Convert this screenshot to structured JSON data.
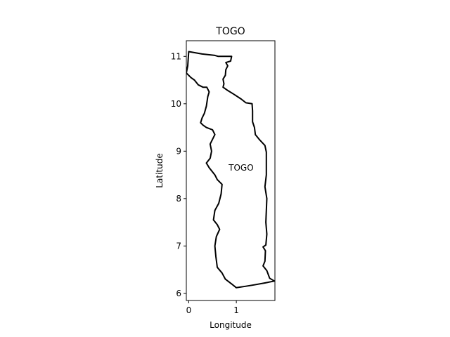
{
  "chart_data": {
    "type": "map",
    "title": "TOGO",
    "xlabel": "Longitude",
    "ylabel": "Latitude",
    "xlim": [
      -0.05,
      1.81
    ],
    "ylim": [
      5.85,
      11.33
    ],
    "xticks": [
      0,
      1
    ],
    "yticks": [
      6,
      7,
      8,
      9,
      10,
      11
    ],
    "xtick_labels": [
      "0",
      "1"
    ],
    "ytick_labels": [
      "6",
      "7",
      "8",
      "9",
      "10",
      "11"
    ],
    "region_label": {
      "text": "TOGO",
      "lon": 1.1,
      "lat": 8.65
    },
    "outline_color": "#000000",
    "boundary": [
      [
        0.0,
        11.1
      ],
      [
        0.28,
        11.05
      ],
      [
        0.55,
        11.02
      ],
      [
        0.62,
        11.0
      ],
      [
        0.9,
        11.0
      ],
      [
        0.88,
        10.9
      ],
      [
        0.78,
        10.87
      ],
      [
        0.82,
        10.8
      ],
      [
        0.78,
        10.72
      ],
      [
        0.77,
        10.6
      ],
      [
        0.72,
        10.52
      ],
      [
        0.74,
        10.42
      ],
      [
        0.72,
        10.35
      ],
      [
        0.82,
        10.28
      ],
      [
        0.95,
        10.2
      ],
      [
        1.1,
        10.1
      ],
      [
        1.2,
        10.02
      ],
      [
        1.33,
        10.0
      ],
      [
        1.34,
        9.85
      ],
      [
        1.34,
        9.62
      ],
      [
        1.38,
        9.5
      ],
      [
        1.4,
        9.35
      ],
      [
        1.48,
        9.25
      ],
      [
        1.6,
        9.12
      ],
      [
        1.63,
        8.98
      ],
      [
        1.63,
        8.8
      ],
      [
        1.63,
        8.5
      ],
      [
        1.6,
        8.25
      ],
      [
        1.64,
        8.0
      ],
      [
        1.63,
        7.75
      ],
      [
        1.62,
        7.5
      ],
      [
        1.64,
        7.25
      ],
      [
        1.62,
        7.02
      ],
      [
        1.56,
        6.98
      ],
      [
        1.61,
        6.9
      ],
      [
        1.6,
        6.68
      ],
      [
        1.56,
        6.58
      ],
      [
        1.64,
        6.48
      ],
      [
        1.7,
        6.32
      ],
      [
        1.8,
        6.26
      ],
      [
        1.6,
        6.22
      ],
      [
        1.38,
        6.18
      ],
      [
        1.2,
        6.15
      ],
      [
        1.0,
        6.12
      ],
      [
        0.9,
        6.2
      ],
      [
        0.77,
        6.3
      ],
      [
        0.7,
        6.43
      ],
      [
        0.6,
        6.55
      ],
      [
        0.57,
        6.78
      ],
      [
        0.55,
        7.0
      ],
      [
        0.58,
        7.2
      ],
      [
        0.65,
        7.35
      ],
      [
        0.6,
        7.45
      ],
      [
        0.52,
        7.55
      ],
      [
        0.55,
        7.75
      ],
      [
        0.63,
        7.9
      ],
      [
        0.68,
        8.1
      ],
      [
        0.7,
        8.3
      ],
      [
        0.6,
        8.4
      ],
      [
        0.55,
        8.5
      ],
      [
        0.43,
        8.65
      ],
      [
        0.37,
        8.75
      ],
      [
        0.45,
        8.85
      ],
      [
        0.48,
        9.0
      ],
      [
        0.45,
        9.15
      ],
      [
        0.55,
        9.35
      ],
      [
        0.5,
        9.45
      ],
      [
        0.37,
        9.5
      ],
      [
        0.3,
        9.55
      ],
      [
        0.25,
        9.6
      ],
      [
        0.28,
        9.7
      ],
      [
        0.33,
        9.8
      ],
      [
        0.37,
        9.95
      ],
      [
        0.4,
        10.15
      ],
      [
        0.43,
        10.25
      ],
      [
        0.38,
        10.35
      ],
      [
        0.3,
        10.35
      ],
      [
        0.2,
        10.4
      ],
      [
        0.12,
        10.5
      ],
      [
        0.05,
        10.55
      ],
      [
        -0.05,
        10.65
      ],
      [
        -0.02,
        10.8
      ],
      [
        0.0,
        11.1
      ]
    ]
  }
}
